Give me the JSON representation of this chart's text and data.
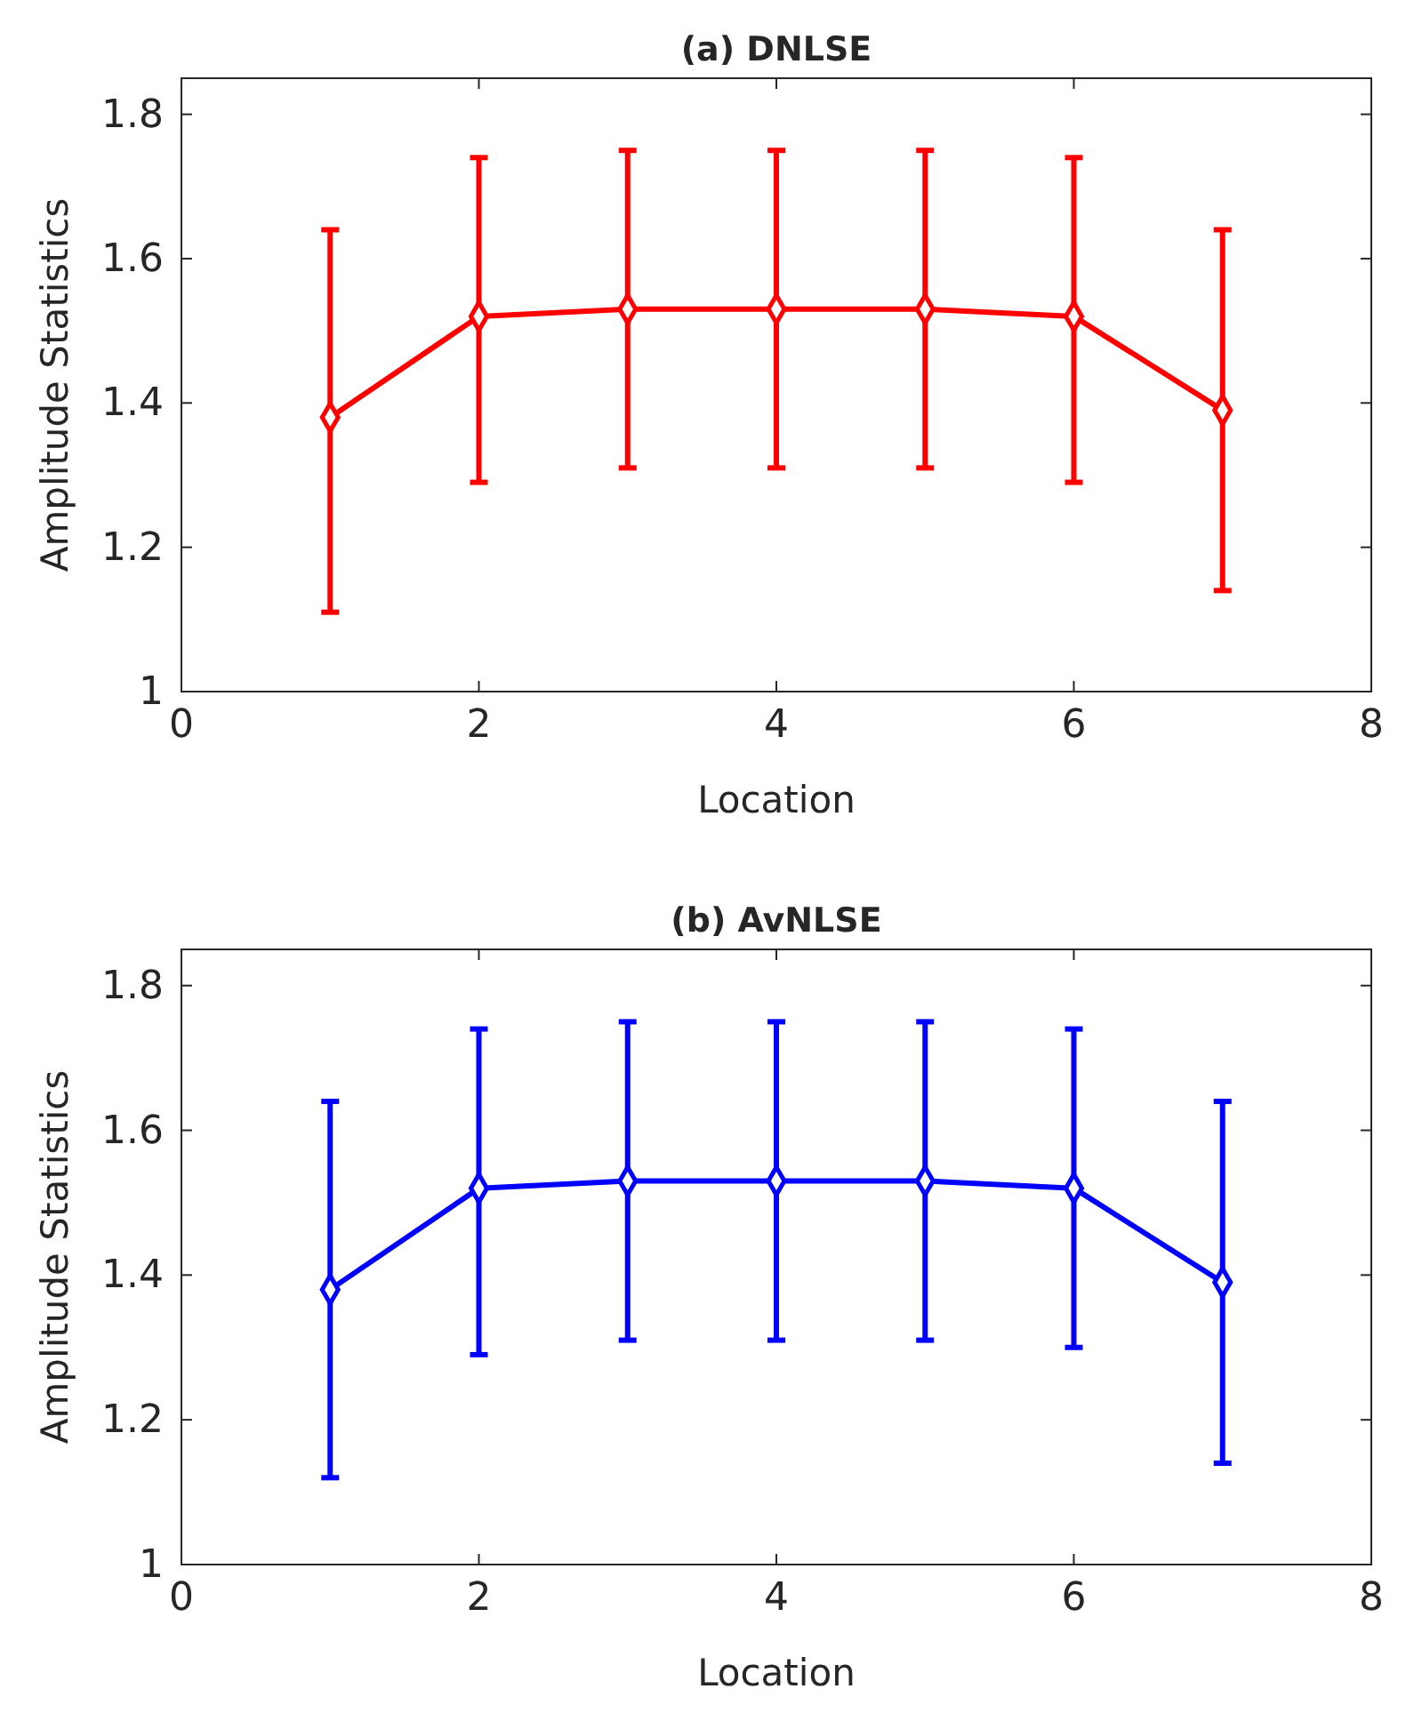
{
  "chart_data": [
    {
      "type": "line",
      "title": "(a) DNLSE",
      "xlabel": "Location",
      "ylabel": "Amplitude Statistics",
      "x": [
        1,
        2,
        3,
        4,
        5,
        6,
        7
      ],
      "series": [
        {
          "color": "#ff0000",
          "values": [
            1.38,
            1.52,
            1.53,
            1.53,
            1.53,
            1.52,
            1.39
          ],
          "errors": [
            [
              1.11,
              1.64
            ],
            [
              1.29,
              1.74
            ],
            [
              1.31,
              1.75
            ],
            [
              1.31,
              1.75
            ],
            [
              1.31,
              1.75
            ],
            [
              1.29,
              1.74
            ],
            [
              1.14,
              1.64
            ]
          ]
        }
      ],
      "xlim": [
        0,
        8
      ],
      "xticks": [
        0,
        2,
        4,
        6,
        8
      ],
      "ylim": [
        1,
        1.85
      ],
      "yticks": [
        1,
        1.2,
        1.4,
        1.6,
        1.8
      ],
      "marker": "diamond",
      "line_style": "solid",
      "grid": false
    },
    {
      "type": "line",
      "title": "(b) AvNLSE",
      "xlabel": "Location",
      "ylabel": "Amplitude Statistics",
      "x": [
        1,
        2,
        3,
        4,
        5,
        6,
        7
      ],
      "series": [
        {
          "color": "#0000ff",
          "values": [
            1.38,
            1.52,
            1.53,
            1.53,
            1.53,
            1.52,
            1.39
          ],
          "errors": [
            [
              1.12,
              1.64
            ],
            [
              1.29,
              1.74
            ],
            [
              1.31,
              1.75
            ],
            [
              1.31,
              1.75
            ],
            [
              1.31,
              1.75
            ],
            [
              1.3,
              1.74
            ],
            [
              1.14,
              1.64
            ]
          ]
        }
      ],
      "xlim": [
        0,
        8
      ],
      "xticks": [
        0,
        2,
        4,
        6,
        8
      ],
      "ylim": [
        1,
        1.85
      ],
      "yticks": [
        1,
        1.2,
        1.4,
        1.6,
        1.8
      ],
      "marker": "diamond",
      "line_style": "solid",
      "grid": false
    }
  ]
}
